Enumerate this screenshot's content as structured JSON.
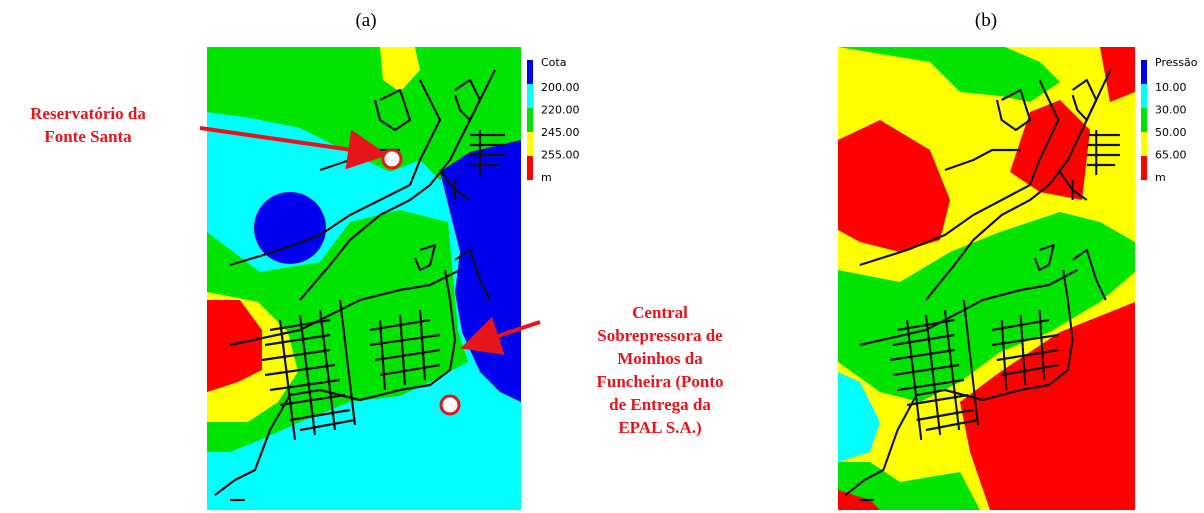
{
  "panels": [
    {
      "label": "(a)",
      "legend": {
        "title": "Cota",
        "labels": [
          "200.00",
          "220.00",
          "245.00",
          "255.00"
        ],
        "unit": "m"
      }
    },
    {
      "label": "(b)",
      "legend": {
        "title": "Pressão",
        "labels": [
          "10.00",
          "30.00",
          "50.00",
          "65.00"
        ],
        "unit": "m"
      }
    }
  ],
  "annotations": [
    {
      "lines": [
        "Reservatório da",
        "Fonte Santa"
      ]
    },
    {
      "lines": [
        "Central",
        "Sobrepressora de",
        "Moinhos da",
        "Funcheira (Ponto",
        "de Entrega da",
        "EPAL S.A.)"
      ]
    }
  ]
}
